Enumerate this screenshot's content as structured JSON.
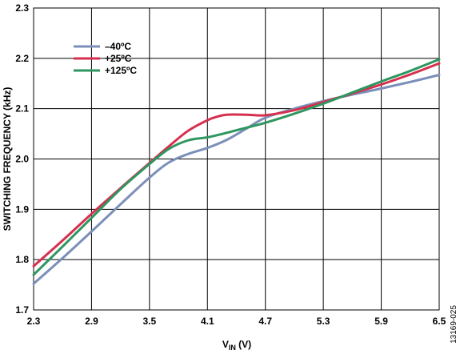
{
  "chart_data": {
    "type": "line",
    "xlabel_main": "V",
    "xlabel_sub": "IN",
    "xlabel_unit": " (V)",
    "ylabel": "SWITCHING FREQUENCY (kHz)",
    "x_ticks": [
      "2.3",
      "2.9",
      "3.5",
      "4.1",
      "4.7",
      "5.3",
      "5.9",
      "6.5"
    ],
    "y_ticks": [
      "1.7",
      "1.8",
      "1.9",
      "2.0",
      "2.1",
      "2.2",
      "2.3"
    ],
    "xlim": [
      2.3,
      6.5
    ],
    "ylim": [
      1.7,
      2.3
    ],
    "grid": true,
    "legend_position": "top-left",
    "series": [
      {
        "name": "–40ºC",
        "color": "#7b8fb8",
        "x": [
          2.3,
          2.6,
          2.9,
          3.2,
          3.5,
          3.7,
          3.9,
          4.1,
          4.3,
          4.5,
          4.7,
          5.0,
          5.3,
          5.6,
          5.9,
          6.2,
          6.5
        ],
        "y": [
          1.752,
          1.803,
          1.856,
          1.91,
          1.963,
          1.993,
          2.01,
          2.022,
          2.038,
          2.06,
          2.082,
          2.1,
          2.115,
          2.128,
          2.14,
          2.153,
          2.167
        ]
      },
      {
        "name": "+25ºC",
        "color": "#d6304e",
        "x": [
          2.3,
          2.6,
          2.9,
          3.2,
          3.5,
          3.7,
          3.9,
          4.1,
          4.2,
          4.3,
          4.5,
          4.7,
          5.0,
          5.3,
          5.6,
          5.9,
          6.2,
          6.5
        ],
        "y": [
          1.787,
          1.838,
          1.891,
          1.942,
          1.992,
          2.025,
          2.056,
          2.077,
          2.084,
          2.088,
          2.088,
          2.087,
          2.097,
          2.113,
          2.13,
          2.148,
          2.168,
          2.19
        ]
      },
      {
        "name": "+125ºC",
        "color": "#2e9660",
        "x": [
          2.3,
          2.6,
          2.9,
          3.2,
          3.5,
          3.7,
          3.9,
          4.1,
          4.3,
          4.5,
          4.7,
          5.0,
          5.3,
          5.6,
          5.9,
          6.2,
          6.5
        ],
        "y": [
          1.77,
          1.826,
          1.883,
          1.94,
          1.99,
          2.02,
          2.037,
          2.043,
          2.052,
          2.062,
          2.072,
          2.09,
          2.11,
          2.132,
          2.154,
          2.175,
          2.198
        ]
      }
    ]
  },
  "figure_id": "13169-025"
}
